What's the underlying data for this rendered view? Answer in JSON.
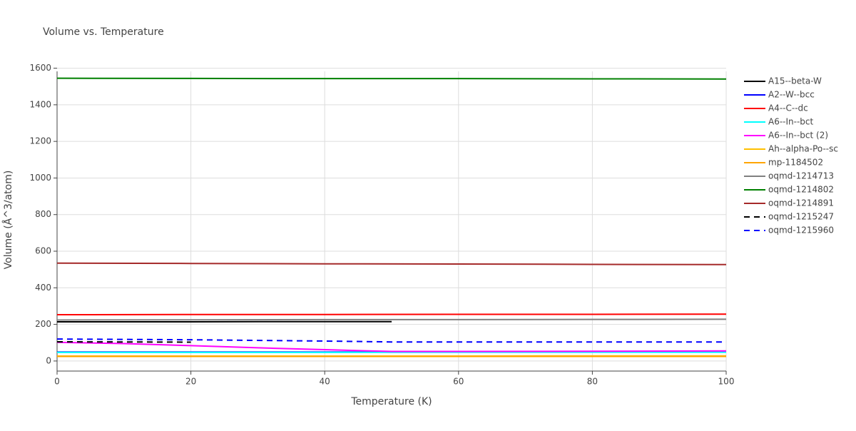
{
  "chart_data": {
    "type": "line",
    "title": "Volume vs. Temperature",
    "x_label": "Temperature (K)",
    "y_label": "Volume (Å^3/atom)",
    "xlim": [
      0,
      100
    ],
    "xticks": [
      0,
      20,
      40,
      60,
      80,
      100
    ],
    "ylim": [
      -55,
      1610
    ],
    "yticks": [
      0,
      200,
      400,
      600,
      800,
      1000,
      1200,
      1400,
      1600
    ],
    "grid": true,
    "legend": "right",
    "series": [
      {
        "name": "A15--beta-W",
        "color": "#000000",
        "dash": false,
        "x": [
          0,
          10,
          20,
          30,
          40,
          50
        ],
        "values": [
          214,
          214,
          214,
          215,
          215,
          215
        ]
      },
      {
        "name": "A2--W--bcc",
        "color": "#0000ff",
        "dash": false,
        "x": [
          0,
          20,
          40,
          60,
          80,
          100
        ],
        "values": [
          49,
          49,
          49,
          50,
          50,
          50
        ]
      },
      {
        "name": "A4--C--dc",
        "color": "#ff0000",
        "dash": false,
        "x": [
          0,
          20,
          40,
          60,
          80,
          100
        ],
        "values": [
          253,
          254,
          254,
          255,
          255,
          256
        ]
      },
      {
        "name": "A6--In--bct",
        "color": "#00ffff",
        "dash": false,
        "x": [
          0,
          20,
          40,
          60,
          80,
          100
        ],
        "values": [
          47,
          47,
          47,
          48,
          48,
          48
        ]
      },
      {
        "name": "A6--In--bct (2)",
        "color": "#ff00ff",
        "dash": false,
        "x": [
          0,
          10,
          20,
          30,
          40,
          50,
          60,
          80,
          100
        ],
        "values": [
          102,
          95,
          84,
          72,
          62,
          52,
          52,
          53,
          55
        ]
      },
      {
        "name": "Ah--alpha-Po--sc",
        "color": "#ffc000",
        "dash": false,
        "x": [
          0,
          20,
          40,
          60,
          80,
          100
        ],
        "values": [
          27,
          27,
          27,
          27,
          28,
          28
        ]
      },
      {
        "name": "mp-1184502",
        "color": "#ffa500",
        "dash": false,
        "x": [
          0,
          20,
          40,
          60,
          80,
          100
        ],
        "values": [
          25,
          25,
          25,
          25,
          25,
          25
        ]
      },
      {
        "name": "oqmd-1214713",
        "color": "#808080",
        "dash": false,
        "x": [
          0,
          20,
          40,
          60,
          80,
          100
        ],
        "values": [
          224,
          225,
          226,
          226,
          227,
          228
        ]
      },
      {
        "name": "oqmd-1214802",
        "color": "#008000",
        "dash": false,
        "x": [
          0,
          20,
          40,
          60,
          80,
          100
        ],
        "values": [
          1545,
          1544,
          1543,
          1543,
          1542,
          1541
        ]
      },
      {
        "name": "oqmd-1214891",
        "color": "#a52a2a",
        "dash": false,
        "x": [
          0,
          20,
          40,
          60,
          80,
          100
        ],
        "values": [
          535,
          533,
          531,
          530,
          528,
          527
        ]
      },
      {
        "name": "oqmd-1215247",
        "color": "#000000",
        "dash": true,
        "x": [
          0,
          10,
          20
        ],
        "values": [
          105,
          104,
          103
        ]
      },
      {
        "name": "oqmd-1215960",
        "color": "#0000ff",
        "dash": true,
        "x": [
          0,
          20,
          40,
          50,
          60,
          80,
          100
        ],
        "values": [
          120,
          116,
          109,
          104,
          104,
          104,
          104
        ]
      }
    ]
  }
}
